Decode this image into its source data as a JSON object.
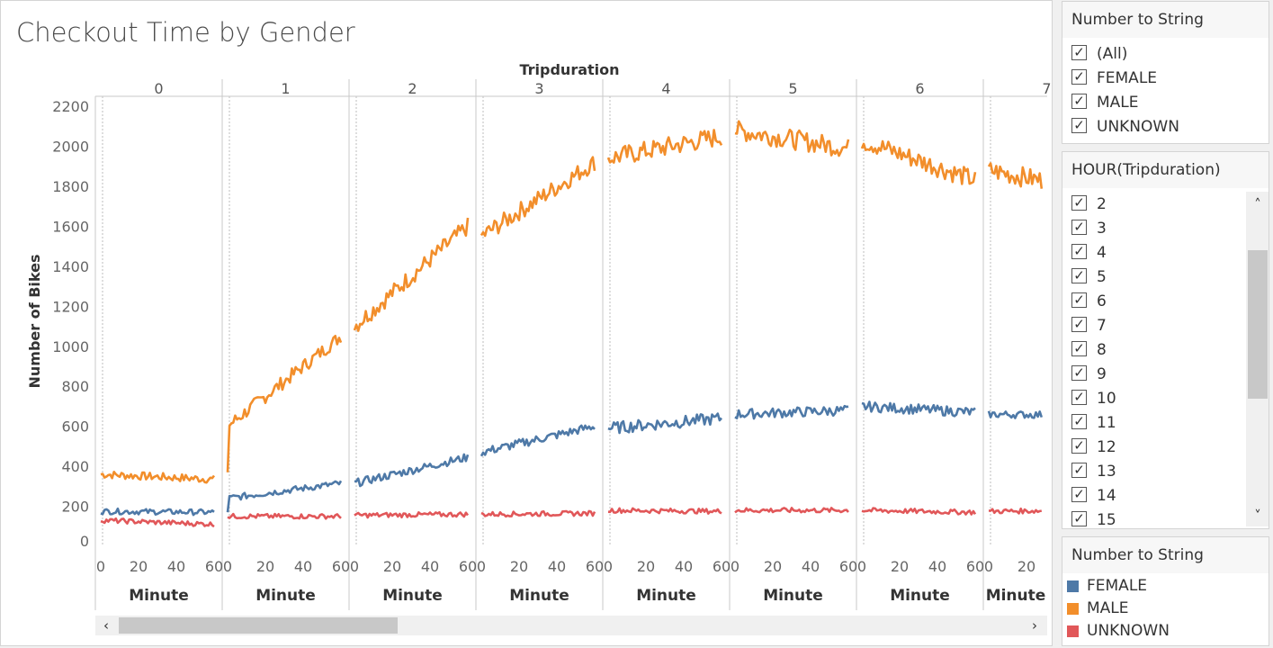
{
  "title": "Checkout Time by Gender",
  "colors": {
    "FEMALE": "#4e79a7",
    "MALE": "#f28e2b",
    "UNKNOWN": "#e15759"
  },
  "filter1": {
    "title": "Number to String",
    "items": [
      "(All)",
      "FEMALE",
      "MALE",
      "UNKNOWN"
    ]
  },
  "filter2": {
    "title": "HOUR(Tripduration)",
    "items": [
      "2",
      "3",
      "4",
      "5",
      "6",
      "7",
      "8",
      "9",
      "10",
      "11",
      "12",
      "13",
      "14",
      "15"
    ]
  },
  "legend": {
    "title": "Number to String",
    "items": [
      {
        "label": "FEMALE",
        "color": "#4e79a7"
      },
      {
        "label": "MALE",
        "color": "#f28e2b"
      },
      {
        "label": "UNKNOWN",
        "color": "#e15759"
      }
    ]
  },
  "scroll_arrows": {
    "left": "‹",
    "right": "›",
    "up": "˄",
    "down": "˅"
  },
  "chart_data": {
    "type": "line",
    "title": "Checkout Time by Gender",
    "column_header": "Tripduration",
    "panels": [
      "0",
      "1",
      "2",
      "3",
      "4",
      "5",
      "6",
      "7"
    ],
    "xlabel": "Minute",
    "ylabel": "Number of Bikes",
    "xticks": [
      0,
      20,
      40,
      60
    ],
    "yticks": [
      0,
      200,
      400,
      600,
      800,
      1000,
      1200,
      1400,
      1600,
      1800,
      2000,
      2200
    ],
    "ylim": [
      0,
      2250
    ],
    "xlim": [
      0,
      60
    ],
    "grid": false,
    "series": [
      {
        "name": "MALE",
        "color": "#f28e2b",
        "segments": [
          {
            "panel": 0,
            "start": 360,
            "end": 335,
            "noise": 20
          },
          {
            "panel": 1,
            "start": 600,
            "end": 1050,
            "noise": 35,
            "first": 370
          },
          {
            "panel": 2,
            "start": 1100,
            "end": 1600,
            "noise": 45
          },
          {
            "panel": 3,
            "start": 1550,
            "end": 1920,
            "noise": 45
          },
          {
            "panel": 4,
            "start": 1940,
            "end": 2050,
            "noise": 50
          },
          {
            "panel": 5,
            "start": 2080,
            "end": 1990,
            "noise": 50
          },
          {
            "panel": 6,
            "start": 2030,
            "end": 1830,
            "noise": 50
          },
          {
            "panel": 7,
            "start": 1880,
            "end": 1770,
            "noise": 50,
            "xmax": 28
          }
        ]
      },
      {
        "name": "FEMALE",
        "color": "#4e79a7",
        "segments": [
          {
            "panel": 0,
            "start": 175,
            "end": 170,
            "noise": 14
          },
          {
            "panel": 1,
            "start": 240,
            "end": 315,
            "noise": 16,
            "first": 170
          },
          {
            "panel": 2,
            "start": 315,
            "end": 445,
            "noise": 20
          },
          {
            "panel": 3,
            "start": 470,
            "end": 600,
            "noise": 22
          },
          {
            "panel": 4,
            "start": 590,
            "end": 640,
            "noise": 30
          },
          {
            "panel": 5,
            "start": 660,
            "end": 680,
            "noise": 25
          },
          {
            "panel": 6,
            "start": 700,
            "end": 670,
            "noise": 25
          },
          {
            "panel": 7,
            "start": 660,
            "end": 655,
            "noise": 18,
            "xmax": 28
          }
        ]
      },
      {
        "name": "UNKNOWN",
        "color": "#e15759",
        "segments": [
          {
            "panel": 0,
            "start": 130,
            "end": 110,
            "noise": 12
          },
          {
            "panel": 1,
            "start": 150,
            "end": 150,
            "noise": 12
          },
          {
            "panel": 2,
            "start": 155,
            "end": 160,
            "noise": 12
          },
          {
            "panel": 3,
            "start": 160,
            "end": 165,
            "noise": 12
          },
          {
            "panel": 4,
            "start": 180,
            "end": 175,
            "noise": 12
          },
          {
            "panel": 5,
            "start": 180,
            "end": 180,
            "noise": 12
          },
          {
            "panel": 6,
            "start": 180,
            "end": 170,
            "noise": 12
          },
          {
            "panel": 7,
            "start": 175,
            "end": 180,
            "noise": 12,
            "xmax": 28
          }
        ]
      }
    ]
  }
}
